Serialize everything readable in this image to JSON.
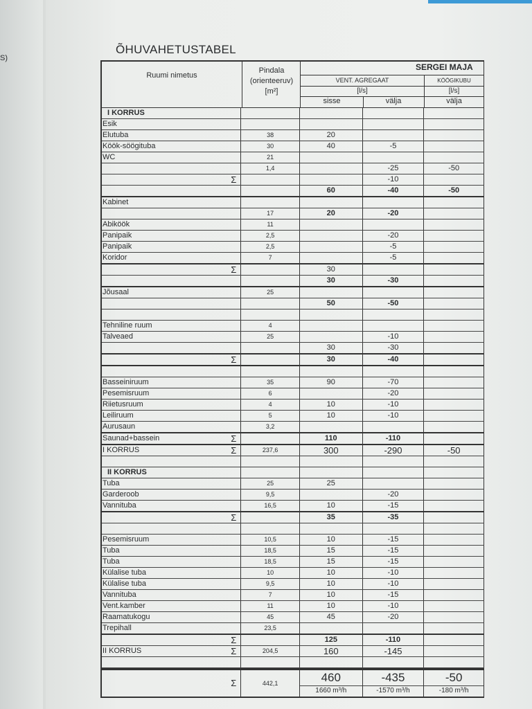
{
  "left_page_text": "S)",
  "title": "ÕHUVAHETUSTABEL",
  "owner": "SERGEI MAJA",
  "sum_symbol": "Σ",
  "header": {
    "room_name": "Ruumi  nimetus",
    "area_line1": "Pindala",
    "area_line2": "(orienteeruv)",
    "area_line3": "[m²]",
    "vent_unit": "VENT. AGREGAAT",
    "vent_flow_unit": "[l/s]",
    "supply": "sisse",
    "exhaust": "välja",
    "kitchen_hood": "KÖÖGIKUBU",
    "kitchen_flow_unit": "[l/s]",
    "kitchen_exhaust": "välja"
  },
  "rows": [
    {
      "name": "I KORRUS",
      "section": true
    },
    {
      "name": "Esik"
    },
    {
      "name": "Elutuba",
      "area": "38",
      "in": "20"
    },
    {
      "name": "Köök-söögituba",
      "area": "30",
      "in": "40",
      "out": "-5"
    },
    {
      "name": "WC",
      "area": "21"
    },
    {
      "name": "",
      "area": "1,4",
      "out": "-25",
      "k": "-50"
    },
    {
      "name": "",
      "sum": true,
      "out": "-10"
    },
    {
      "name": "",
      "in": "60",
      "out": "-40",
      "k": "-50",
      "bold": true,
      "thick": true
    },
    {
      "name": "Kabinet"
    },
    {
      "name": "",
      "area": "17",
      "in": "20",
      "out": "-20",
      "bold": true
    },
    {
      "name": "Abiköök",
      "area": "11"
    },
    {
      "name": "Panipaik",
      "area": "2,5",
      "out": "-20"
    },
    {
      "name": "Panipaik",
      "area": "2,5",
      "out": "-5"
    },
    {
      "name": "Koridor",
      "area": "7",
      "out": "-5",
      "thick": true
    },
    {
      "name": "",
      "sum": true,
      "in": "30"
    },
    {
      "name": "",
      "in": "30",
      "out": "-30",
      "bold": true,
      "thick": true
    },
    {
      "name": "Jõusaal",
      "area": "25"
    },
    {
      "name": "",
      "in": "50",
      "out": "-50",
      "bold": true
    },
    {
      "name": ""
    },
    {
      "name": "Tehniline ruum",
      "area": "4"
    },
    {
      "name": "Talveaed",
      "area": "25",
      "out": "-10"
    },
    {
      "name": "",
      "in": "30",
      "out": "-30",
      "thick": true
    },
    {
      "name": "",
      "sum": true,
      "in": "30",
      "out": "-40",
      "bold": true,
      "thick": true
    },
    {
      "name": ""
    },
    {
      "name": "Basseiniruum",
      "area": "35",
      "in": "90",
      "out": "-70"
    },
    {
      "name": "Pesemisruum",
      "area": "6",
      "out": "-20"
    },
    {
      "name": "Riietusruum",
      "area": "4",
      "in": "10",
      "out": "-10"
    },
    {
      "name": "Leiliruum",
      "area": "5",
      "in": "10",
      "out": "-10"
    },
    {
      "name": "Aurusaun",
      "area": "3,2",
      "thick": true
    },
    {
      "name": "Saunad+bassein",
      "sum": true,
      "in": "110",
      "out": "-110",
      "bold": true,
      "thick": true
    },
    {
      "name": "I KORRUS",
      "sum": true,
      "area": "237,6",
      "in": "300",
      "out": "-290",
      "k": "-50",
      "big": true
    },
    {
      "name": ""
    },
    {
      "name": "II KORRUS",
      "section": true
    },
    {
      "name": "Tuba",
      "area": "25",
      "in": "25"
    },
    {
      "name": "Garderoob",
      "area": "9,5",
      "out": "-20"
    },
    {
      "name": "Vannituba",
      "area": "16,5",
      "in": "10",
      "out": "-15",
      "thick": true
    },
    {
      "name": "",
      "sum": true,
      "in": "35",
      "out": "-35",
      "bold": true
    },
    {
      "name": ""
    },
    {
      "name": "Pesemisruum",
      "area": "10,5",
      "in": "10",
      "out": "-15"
    },
    {
      "name": "Tuba",
      "area": "18,5",
      "in": "15",
      "out": "-15"
    },
    {
      "name": "Tuba",
      "area": "18,5",
      "in": "15",
      "out": "-15"
    },
    {
      "name": "Külalise tuba",
      "area": "10",
      "in": "10",
      "out": "-10"
    },
    {
      "name": "Külalise tuba",
      "area": "9,5",
      "in": "10",
      "out": "-10"
    },
    {
      "name": "Vannituba",
      "area": "7",
      "in": "10",
      "out": "-15"
    },
    {
      "name": "Vent.kamber",
      "area": "11",
      "in": "10",
      "out": "-10"
    },
    {
      "name": "Raamatukogu",
      "area": "45",
      "in": "45",
      "out": "-20"
    },
    {
      "name": "Trepihall",
      "area": "23,5",
      "thick": true
    },
    {
      "name": "",
      "sum": true,
      "in": "125",
      "out": "-110",
      "bold": true
    },
    {
      "name": "II KORRUS",
      "sum": true,
      "area": "204,5",
      "in": "160",
      "out": "-145",
      "big": true
    },
    {
      "name": ""
    }
  ],
  "total": {
    "area": "442,1",
    "in": "460",
    "in_m3h": "1660 m³/h",
    "out": "-435",
    "out_m3h": "-1570 m³/h",
    "k": "-50",
    "k_m3h": "-180 m³/h"
  }
}
